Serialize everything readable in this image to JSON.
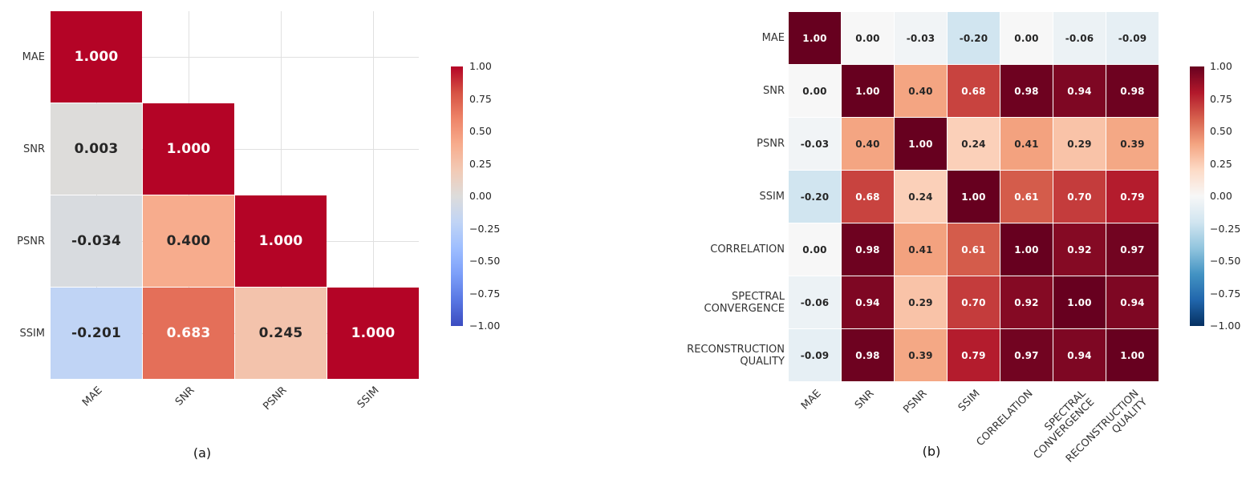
{
  "captions": {
    "a": "(a)",
    "b": "(b)"
  },
  "chart_data": [
    {
      "id": "a",
      "type": "heatmap",
      "subtype": "correlation-matrix-lower-triangle",
      "labels": [
        "MAE",
        "SNR",
        "PSNR",
        "SSIM"
      ],
      "matrix": [
        [
          1.0,
          null,
          null,
          null
        ],
        [
          0.003,
          1.0,
          null,
          null
        ],
        [
          -0.034,
          0.4,
          1.0,
          null
        ],
        [
          -0.201,
          0.683,
          0.245,
          1.0
        ]
      ],
      "decimals": 3,
      "colormap": "coolwarm",
      "vmin": -1,
      "vmax": 1,
      "grid": true,
      "colorbar": {
        "ticks": [
          "1.00",
          "0.75",
          "0.50",
          "0.25",
          "0.00",
          "−0.25",
          "−0.50",
          "−0.75",
          "−1.00"
        ]
      }
    },
    {
      "id": "b",
      "type": "heatmap",
      "subtype": "correlation-matrix-full",
      "labels": [
        "MAE",
        "SNR",
        "PSNR",
        "SSIM",
        "CORRELATION",
        "SPECTRAL\nCONVERGENCE",
        "RECONSTRUCTION\nQUALITY"
      ],
      "matrix": [
        [
          1.0,
          0.0,
          -0.03,
          -0.2,
          0.0,
          -0.06,
          -0.09
        ],
        [
          0.0,
          1.0,
          0.4,
          0.68,
          0.98,
          0.94,
          0.98
        ],
        [
          -0.03,
          0.4,
          1.0,
          0.24,
          0.41,
          0.29,
          0.39
        ],
        [
          -0.2,
          0.68,
          0.24,
          1.0,
          0.61,
          0.7,
          0.79
        ],
        [
          0.0,
          0.98,
          0.41,
          0.61,
          1.0,
          0.92,
          0.97
        ],
        [
          -0.06,
          0.94,
          0.29,
          0.7,
          0.92,
          1.0,
          0.94
        ],
        [
          -0.09,
          0.98,
          0.39,
          0.79,
          0.97,
          0.94,
          1.0
        ]
      ],
      "decimals": 2,
      "colormap": "RdBu_r",
      "vmin": -1,
      "vmax": 1,
      "grid": false,
      "colorbar": {
        "ticks": [
          "1.00",
          "0.75",
          "0.50",
          "0.25",
          "0.00",
          "−0.25",
          "−0.50",
          "−0.75",
          "−1.00"
        ]
      }
    }
  ],
  "colormaps": {
    "coolwarm": [
      "#3b4cc0",
      "#5977e3",
      "#7c9ff9",
      "#9ebeff",
      "#c0d4f5",
      "#dddcdb",
      "#f2cab5",
      "#f7ac8d",
      "#ee8468",
      "#d65243",
      "#b40426"
    ],
    "RdBu_r": [
      "#053061",
      "#2166ac",
      "#4393c3",
      "#92c5de",
      "#d1e5f0",
      "#f7f7f7",
      "#fddbc7",
      "#f4a582",
      "#d6604d",
      "#b2182b",
      "#67001f"
    ]
  },
  "text_colors": {
    "dark": "#262626",
    "light": "#ffffff"
  }
}
